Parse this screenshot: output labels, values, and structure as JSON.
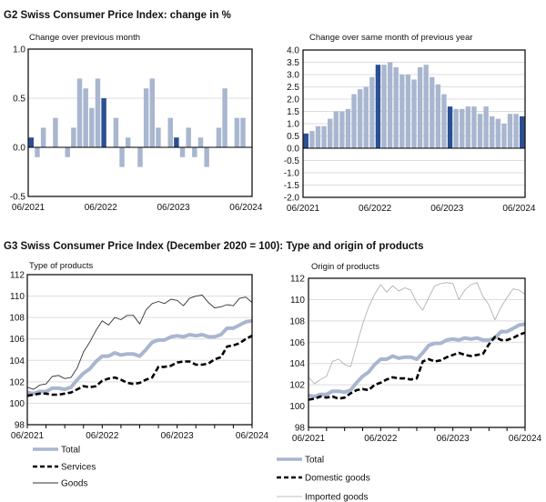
{
  "g2": {
    "title": "G2  Swiss Consumer Price Index: change in %"
  },
  "g3": {
    "title": "G3  Swiss Consumer Price Index (December 2020 = 100): Type and origin of products"
  },
  "chart_data": [
    {
      "id": "mom",
      "type": "bar",
      "title": "Change over previous month",
      "x_tick_labels": [
        "06/2021",
        "06/2022",
        "06/2023",
        "06/2024"
      ],
      "y_ticks": [
        "1.0",
        "0.5",
        "0.0",
        "-0.5"
      ],
      "ylim": [
        -0.5,
        1.0
      ],
      "highlight_months": [
        "06/2021",
        "06/2022",
        "06/2023",
        "06/2024"
      ],
      "colors": {
        "bar": "#a9b6cf",
        "highlight": "#2b4f95"
      },
      "values": [
        0.1,
        -0.1,
        0.2,
        0.0,
        0.3,
        0.0,
        -0.1,
        0.2,
        0.7,
        0.6,
        0.4,
        0.7,
        0.5,
        0.0,
        0.3,
        -0.2,
        0.1,
        0.0,
        -0.2,
        0.6,
        0.7,
        0.2,
        0.0,
        0.3,
        0.1,
        -0.1,
        0.2,
        -0.1,
        0.1,
        -0.2,
        0.0,
        0.2,
        0.6,
        0.0,
        0.3,
        0.3,
        0.0
      ]
    },
    {
      "id": "yoy",
      "type": "bar",
      "title": "Change over same month of previous year",
      "x_tick_labels": [
        "06/2021",
        "06/2022",
        "06/2023",
        "06/2024"
      ],
      "y_ticks": [
        "4.0",
        "3.5",
        "3.0",
        "2.5",
        "2.0",
        "1.5",
        "1.0",
        "0.5",
        "0.0",
        "-0.5",
        "-1.0",
        "-1.5",
        "-2.0"
      ],
      "ylim": [
        -2.0,
        4.0
      ],
      "colors": {
        "bar": "#a9b6cf",
        "highlight": "#2b4f95"
      },
      "values": [
        0.6,
        0.7,
        0.9,
        0.9,
        1.2,
        1.5,
        1.5,
        1.6,
        2.2,
        2.4,
        2.5,
        2.9,
        3.4,
        3.4,
        3.5,
        3.3,
        3.0,
        3.0,
        2.8,
        3.3,
        3.4,
        2.9,
        2.6,
        2.2,
        1.7,
        1.6,
        1.6,
        1.7,
        1.7,
        1.4,
        1.7,
        1.3,
        1.2,
        1.0,
        1.4,
        1.4,
        1.3
      ]
    },
    {
      "id": "type",
      "type": "line",
      "title": "Type of products",
      "x_tick_labels": [
        "06/2021",
        "06/2022",
        "06/2023",
        "06/2024"
      ],
      "y_ticks": [
        "112",
        "110",
        "108",
        "106",
        "104",
        "102",
        "100",
        "98"
      ],
      "ylim": [
        98,
        112
      ],
      "series": [
        {
          "name": "Total",
          "style": "thick",
          "color": "#a9b6cf",
          "values": [
            101.0,
            100.9,
            101.1,
            101.1,
            101.4,
            101.4,
            101.3,
            101.5,
            102.2,
            102.8,
            103.2,
            103.9,
            104.4,
            104.4,
            104.7,
            104.5,
            104.6,
            104.6,
            104.4,
            105.0,
            105.7,
            105.9,
            105.9,
            106.2,
            106.3,
            106.2,
            106.4,
            106.3,
            106.4,
            106.2,
            106.2,
            106.4,
            107.0,
            107.0,
            107.3,
            107.6,
            107.7
          ]
        },
        {
          "name": "Services",
          "style": "dashed",
          "color": "#000000",
          "values": [
            100.7,
            100.8,
            100.9,
            100.9,
            100.8,
            100.8,
            100.9,
            101.0,
            101.3,
            101.6,
            101.5,
            101.6,
            102.1,
            102.3,
            102.4,
            102.2,
            101.9,
            101.8,
            101.9,
            102.2,
            102.4,
            103.4,
            103.4,
            103.5,
            103.8,
            103.9,
            103.9,
            103.6,
            103.6,
            103.7,
            104.1,
            104.3,
            105.3,
            105.4,
            105.6,
            106.0,
            106.3
          ]
        },
        {
          "name": "Goods",
          "style": "thin",
          "color": "#333333",
          "values": [
            101.5,
            101.3,
            101.7,
            101.8,
            102.5,
            102.6,
            102.3,
            102.4,
            103.3,
            104.8,
            105.7,
            106.8,
            107.7,
            107.3,
            108.0,
            107.8,
            108.2,
            108.2,
            107.4,
            108.7,
            109.3,
            109.5,
            109.3,
            109.7,
            109.6,
            109.1,
            109.8,
            110.0,
            110.1,
            109.4,
            108.9,
            109.0,
            109.2,
            109.1,
            109.8,
            109.9,
            109.4
          ]
        }
      ]
    },
    {
      "id": "origin",
      "type": "line",
      "title": "Origin of products",
      "x_tick_labels": [
        "06/2021",
        "06/2022",
        "06/2023",
        "06/2024"
      ],
      "y_ticks": [
        "112",
        "110",
        "108",
        "106",
        "104",
        "102",
        "100",
        "98"
      ],
      "ylim": [
        98,
        112
      ],
      "series": [
        {
          "name": "Total",
          "style": "thick",
          "color": "#a9b6cf",
          "values": [
            101.0,
            100.9,
            101.1,
            101.1,
            101.4,
            101.4,
            101.3,
            101.5,
            102.2,
            102.8,
            103.2,
            103.9,
            104.4,
            104.4,
            104.7,
            104.5,
            104.6,
            104.6,
            104.4,
            105.0,
            105.7,
            105.9,
            105.9,
            106.2,
            106.3,
            106.2,
            106.4,
            106.3,
            106.4,
            106.2,
            106.2,
            106.4,
            107.0,
            107.0,
            107.3,
            107.6,
            107.7
          ]
        },
        {
          "name": "Domestic goods",
          "style": "dashed",
          "color": "#000000",
          "values": [
            100.6,
            100.7,
            100.9,
            100.8,
            100.9,
            100.7,
            100.8,
            101.2,
            101.5,
            101.6,
            101.5,
            102.0,
            102.2,
            102.5,
            102.7,
            102.6,
            102.6,
            102.5,
            102.6,
            104.2,
            104.4,
            104.2,
            104.3,
            104.6,
            104.8,
            105.0,
            104.8,
            104.7,
            104.8,
            104.9,
            105.8,
            106.5,
            106.2,
            106.2,
            106.4,
            106.7,
            106.9
          ]
        },
        {
          "name": "Imported goods",
          "style": "hair",
          "color": "#aaaaaa",
          "values": [
            102.7,
            102.1,
            102.5,
            102.8,
            104.2,
            104.4,
            103.9,
            103.7,
            105.7,
            107.7,
            109.3,
            110.5,
            111.4,
            110.7,
            111.3,
            110.8,
            111.1,
            110.9,
            109.7,
            109.0,
            110.2,
            111.3,
            111.5,
            111.6,
            111.5,
            110.0,
            110.9,
            111.4,
            111.6,
            110.3,
            109.5,
            108.1,
            109.3,
            110.2,
            111.0,
            110.9,
            110.5
          ]
        }
      ]
    }
  ]
}
